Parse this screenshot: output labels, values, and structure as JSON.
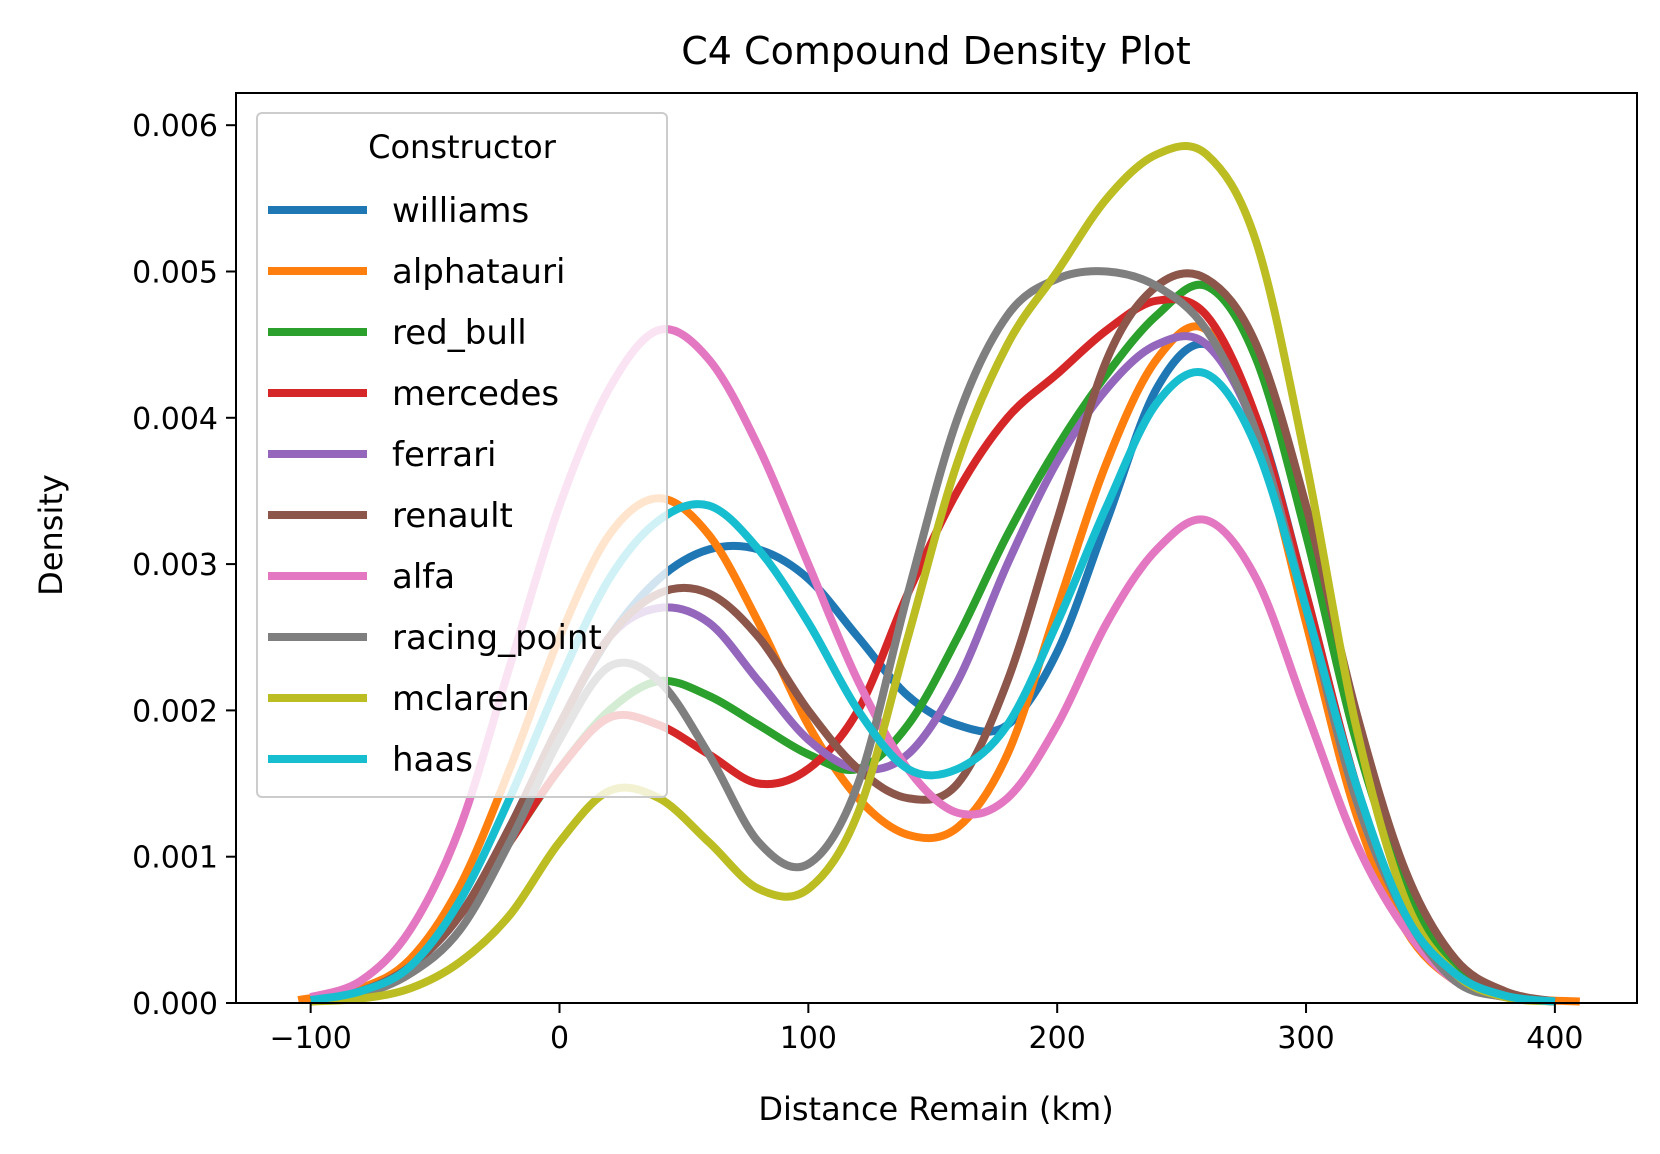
{
  "chart_data": {
    "type": "line",
    "title": "C4 Compound Density Plot",
    "xlabel": "Distance Remain (km)",
    "ylabel": "Density",
    "xlim": [
      -130,
      433
    ],
    "ylim": [
      0,
      0.00622
    ],
    "xticks": [
      -100,
      0,
      100,
      200,
      300,
      400
    ],
    "xtick_labels": [
      "−100",
      "0",
      "100",
      "200",
      "300",
      "400"
    ],
    "yticks": [
      0,
      0.001,
      0.002,
      0.003,
      0.004,
      0.005,
      0.006
    ],
    "ytick_labels": [
      "0.000",
      "0.001",
      "0.002",
      "0.003",
      "0.004",
      "0.005",
      "0.006"
    ],
    "grid": false,
    "legend": {
      "title": "Constructor",
      "position": "upper-left"
    },
    "series": [
      {
        "name": "williams",
        "color": "#1f77b4",
        "x": [
          -100,
          -80,
          -60,
          -40,
          -20,
          0,
          20,
          40,
          60,
          80,
          100,
          120,
          140,
          160,
          180,
          200,
          220,
          240,
          260,
          280,
          300,
          320,
          340,
          360,
          380,
          400
        ],
        "y": [
          2e-05,
          8e-05,
          0.00025,
          0.0006,
          0.0012,
          0.0019,
          0.0025,
          0.0029,
          0.0031,
          0.0031,
          0.0029,
          0.0025,
          0.0021,
          0.0019,
          0.0019,
          0.0024,
          0.0033,
          0.0042,
          0.0045,
          0.004,
          0.0028,
          0.0015,
          0.0006,
          0.0002,
          5e-05,
          1e-05
        ]
      },
      {
        "name": "alphatauri",
        "color": "#ff7f0e",
        "x": [
          -105,
          -80,
          -60,
          -40,
          -20,
          0,
          20,
          40,
          60,
          80,
          100,
          120,
          140,
          160,
          180,
          200,
          220,
          240,
          260,
          280,
          300,
          320,
          340,
          360,
          380,
          410
        ],
        "y": [
          2e-05,
          0.0001,
          0.0003,
          0.0008,
          0.0016,
          0.0025,
          0.0032,
          0.00345,
          0.0032,
          0.0026,
          0.0019,
          0.0014,
          0.00115,
          0.0012,
          0.0017,
          0.0027,
          0.0037,
          0.0044,
          0.0046,
          0.0039,
          0.0026,
          0.0013,
          0.0005,
          0.00015,
          4e-05,
          1e-05
        ]
      },
      {
        "name": "red_bull",
        "color": "#2ca02c",
        "x": [
          -100,
          -80,
          -60,
          -40,
          -20,
          0,
          20,
          40,
          60,
          80,
          100,
          120,
          140,
          160,
          180,
          200,
          220,
          240,
          260,
          280,
          300,
          320,
          340,
          360,
          380,
          400
        ],
        "y": [
          2e-05,
          8e-05,
          0.00025,
          0.0006,
          0.0011,
          0.0016,
          0.002,
          0.0022,
          0.0021,
          0.0019,
          0.0017,
          0.0016,
          0.0019,
          0.0025,
          0.0032,
          0.0038,
          0.0043,
          0.0047,
          0.0049,
          0.0044,
          0.0032,
          0.0018,
          0.0008,
          0.00025,
          6e-05,
          1e-05
        ]
      },
      {
        "name": "mercedes",
        "color": "#d62728",
        "x": [
          -100,
          -80,
          -60,
          -40,
          -20,
          0,
          20,
          40,
          60,
          80,
          100,
          120,
          140,
          160,
          180,
          200,
          220,
          240,
          260,
          280,
          300,
          320,
          340,
          360,
          380,
          400
        ],
        "y": [
          2e-05,
          8e-05,
          0.00025,
          0.0006,
          0.0011,
          0.0016,
          0.00195,
          0.0019,
          0.0017,
          0.0015,
          0.0016,
          0.002,
          0.0028,
          0.0035,
          0.004,
          0.0043,
          0.0046,
          0.0048,
          0.0047,
          0.004,
          0.0028,
          0.0015,
          0.0006,
          0.0002,
          5e-05,
          1e-05
        ]
      },
      {
        "name": "ferrari",
        "color": "#9467bd",
        "x": [
          -100,
          -80,
          -60,
          -40,
          -20,
          0,
          20,
          40,
          60,
          80,
          100,
          120,
          140,
          160,
          180,
          200,
          220,
          240,
          260,
          280,
          300,
          320,
          340,
          360,
          380,
          400
        ],
        "y": [
          2e-05,
          8e-05,
          0.00025,
          0.0006,
          0.0012,
          0.0019,
          0.0025,
          0.0027,
          0.0026,
          0.0022,
          0.0018,
          0.0016,
          0.0017,
          0.0022,
          0.003,
          0.0037,
          0.0042,
          0.0045,
          0.0045,
          0.0039,
          0.0027,
          0.0014,
          0.0006,
          0.0002,
          5e-05,
          1e-05
        ]
      },
      {
        "name": "renault",
        "color": "#8c564b",
        "x": [
          -100,
          -80,
          -60,
          -40,
          -20,
          0,
          20,
          40,
          60,
          80,
          100,
          120,
          140,
          160,
          180,
          200,
          220,
          240,
          260,
          280,
          300,
          320,
          340,
          360,
          380,
          400
        ],
        "y": [
          2e-05,
          8e-05,
          0.00025,
          0.0006,
          0.0012,
          0.0019,
          0.0025,
          0.0028,
          0.0028,
          0.0025,
          0.002,
          0.0016,
          0.0014,
          0.0015,
          0.0022,
          0.0033,
          0.0044,
          0.0049,
          0.00495,
          0.0045,
          0.0034,
          0.002,
          0.0009,
          0.0003,
          8e-05,
          1e-05
        ]
      },
      {
        "name": "alfa",
        "color": "#e377c2",
        "x": [
          -100,
          -80,
          -60,
          -40,
          -20,
          0,
          20,
          40,
          60,
          80,
          100,
          120,
          140,
          160,
          180,
          200,
          220,
          240,
          260,
          280,
          300,
          320,
          340,
          360,
          380,
          400
        ],
        "y": [
          4e-05,
          0.00015,
          0.0005,
          0.0012,
          0.0023,
          0.0034,
          0.0042,
          0.0046,
          0.0044,
          0.0038,
          0.003,
          0.0022,
          0.0016,
          0.0013,
          0.0014,
          0.0019,
          0.0026,
          0.0031,
          0.0033,
          0.0029,
          0.002,
          0.0011,
          0.0005,
          0.00015,
          4e-05,
          1e-05
        ]
      },
      {
        "name": "racing_point",
        "color": "#7f7f7f",
        "x": [
          -100,
          -80,
          -60,
          -40,
          -20,
          0,
          20,
          40,
          60,
          80,
          100,
          120,
          140,
          160,
          180,
          200,
          220,
          240,
          260,
          280,
          300,
          320,
          340,
          360,
          380,
          400
        ],
        "y": [
          2e-05,
          6e-05,
          0.0002,
          0.0005,
          0.0011,
          0.0018,
          0.0023,
          0.0022,
          0.0017,
          0.0011,
          0.00095,
          0.0015,
          0.0028,
          0.004,
          0.0047,
          0.00495,
          0.005,
          0.0049,
          0.0046,
          0.0039,
          0.0027,
          0.0014,
          0.0006,
          0.00015,
          4e-05,
          1e-05
        ]
      },
      {
        "name": "mclaren",
        "color": "#bcbd22",
        "x": [
          -100,
          -80,
          -60,
          -40,
          -20,
          0,
          20,
          40,
          60,
          80,
          100,
          120,
          140,
          160,
          180,
          200,
          220,
          240,
          260,
          280,
          300,
          320,
          340,
          360,
          380,
          400
        ],
        "y": [
          1e-05,
          3e-05,
          0.0001,
          0.00028,
          0.0006,
          0.0011,
          0.00145,
          0.0014,
          0.0011,
          0.00078,
          0.00078,
          0.0013,
          0.0025,
          0.0037,
          0.0045,
          0.005,
          0.0055,
          0.0058,
          0.0058,
          0.0052,
          0.0037,
          0.0019,
          0.0007,
          0.0002,
          4e-05,
          1e-05
        ]
      },
      {
        "name": "haas",
        "color": "#17becf",
        "x": [
          -100,
          -80,
          -60,
          -40,
          -20,
          0,
          20,
          40,
          60,
          80,
          100,
          120,
          140,
          160,
          180,
          200,
          220,
          240,
          260,
          280,
          300,
          320,
          340,
          360,
          380,
          400
        ],
        "y": [
          2e-05,
          8e-05,
          0.00025,
          0.0007,
          0.0014,
          0.0022,
          0.0029,
          0.0033,
          0.0034,
          0.0031,
          0.0026,
          0.002,
          0.0016,
          0.0016,
          0.0019,
          0.0026,
          0.0034,
          0.0041,
          0.0043,
          0.0038,
          0.0027,
          0.0015,
          0.0006,
          0.0002,
          5e-05,
          1e-05
        ]
      }
    ]
  }
}
